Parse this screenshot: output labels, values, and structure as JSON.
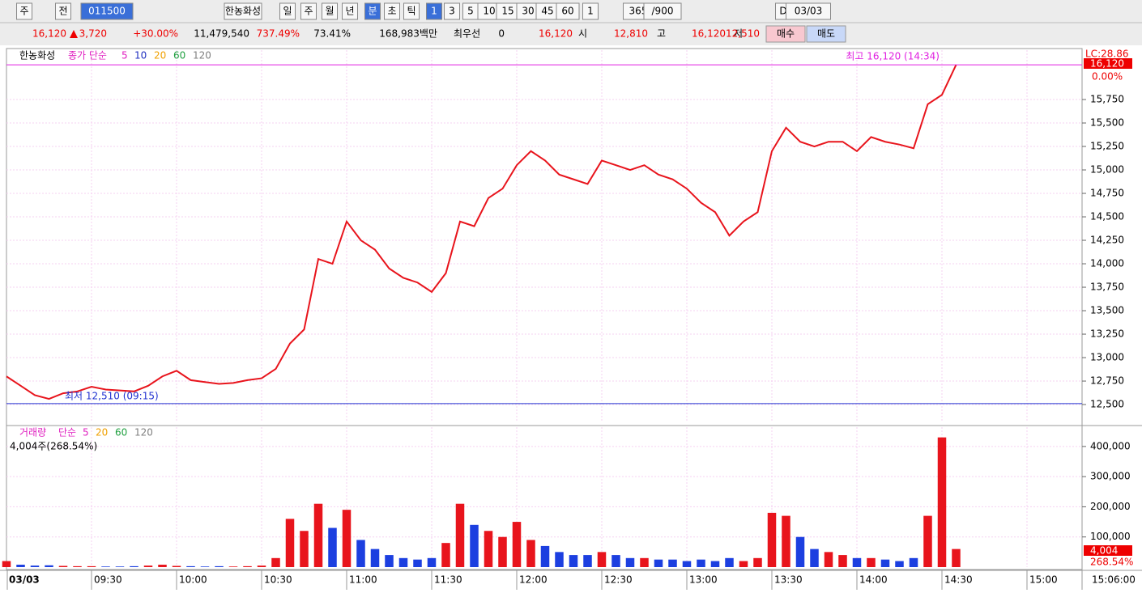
{
  "toolbar": {
    "items": [
      "주",
      "전",
      "011500",
      "한농화성",
      "일",
      "주",
      "월",
      "년",
      "분",
      "초",
      "틱",
      "1",
      "3",
      "5",
      "10",
      "15",
      "30",
      "45",
      "60",
      "1",
      "365",
      "/900",
      "D",
      "03/03"
    ]
  },
  "info_bar": {
    "price": "16,120",
    "change": "3,720",
    "rate": "+30.00%",
    "volume": "11,479,540",
    "volume_rate": "737.49%",
    "turnover": "73.41%",
    "amount": "168,983백만",
    "best_label": "최우선",
    "best_value": "0",
    "current": "16,120",
    "open_label": "시",
    "open": "12,810",
    "high_label": "고",
    "high": "16,120",
    "low_label": "저",
    "low": "12,510",
    "buy": "매수",
    "sell": "매도"
  },
  "chart_data": [
    {
      "type": "line",
      "title": "한농화성",
      "legend": {
        "label": "종가 단순",
        "periods": [
          "5",
          "10",
          "20",
          "60",
          "120"
        ],
        "period_colors": [
          "#e020c0",
          "#2030c0",
          "#f0a000",
          "#20a040",
          "#808080"
        ]
      },
      "color": "#e8141c",
      "categories": [
        "03/03",
        null,
        null,
        null,
        null,
        null,
        "09:30",
        null,
        null,
        null,
        null,
        null,
        "10:00",
        null,
        null,
        null,
        null,
        null,
        "10:30",
        null,
        null,
        null,
        null,
        null,
        "11:00",
        null,
        null,
        null,
        null,
        null,
        "11:30",
        null,
        null,
        null,
        null,
        null,
        "12:00",
        null,
        null,
        null,
        null,
        null,
        "12:30",
        null,
        null,
        null,
        null,
        null,
        "13:00",
        null,
        null,
        null,
        null,
        null,
        "13:30",
        null,
        null,
        null,
        null,
        null,
        "14:00",
        null,
        null,
        null,
        null,
        null,
        "14:30",
        null,
        null,
        null,
        null,
        null,
        "15:00"
      ],
      "values": [
        12800,
        12700,
        12600,
        12560,
        12620,
        12640,
        12690,
        12660,
        12650,
        12640,
        12700,
        12800,
        12860,
        12760,
        12740,
        12720,
        12730,
        12760,
        12780,
        12880,
        13150,
        13300,
        14050,
        14000,
        14450,
        14250,
        14150,
        13950,
        13850,
        13800,
        13700,
        13900,
        14450,
        14400,
        14700,
        14800,
        15050,
        15200,
        15100,
        14950,
        14900,
        14850,
        15100,
        15050,
        15000,
        15050,
        14950,
        14900,
        14800,
        14650,
        14550,
        14300,
        14450,
        14550,
        15200,
        15450,
        15300,
        15250,
        15300,
        15300,
        15200,
        15350,
        15300,
        15270,
        15230,
        15700,
        15800,
        16120,
        null,
        null,
        null,
        null,
        null
      ],
      "ylim": [
        12328,
        16276
      ],
      "yticks": [
        {
          "value": 12500,
          "label": "12,500"
        },
        {
          "value": 12750,
          "label": "12,750"
        },
        {
          "value": 13000,
          "label": "13,000"
        },
        {
          "value": 13250,
          "label": "13,250"
        },
        {
          "value": 13500,
          "label": "13,500"
        },
        {
          "value": 13750,
          "label": "13,750"
        },
        {
          "value": 14000,
          "label": "14,000"
        },
        {
          "value": 14250,
          "label": "14,250"
        },
        {
          "value": 14500,
          "label": "14,500"
        },
        {
          "value": 14750,
          "label": "14,750"
        },
        {
          "value": 15000,
          "label": "15,000"
        },
        {
          "value": 15250,
          "label": "15,250"
        },
        {
          "value": 15500,
          "label": "15,500"
        },
        {
          "value": 15750,
          "label": "15,750"
        }
      ],
      "grid": true,
      "high_line": {
        "value": 16120,
        "label": "최고 16,120 (14:34)",
        "color": "#e020e0"
      },
      "low_line": {
        "value": 12510,
        "label": "최저 12,510 (09:15)",
        "color": "#2030d0"
      },
      "right_labels": {
        "lc": "LC:28.86",
        "last": "16,120",
        "pct": "0.00%"
      },
      "time_now": "15:06:00"
    },
    {
      "type": "bar",
      "title": "거래량",
      "legend": {
        "label": "단순",
        "periods": [
          "5",
          "20",
          "60",
          "120"
        ],
        "period_colors": [
          "#e020c0",
          "#f0a000",
          "#20a040",
          "#808080"
        ]
      },
      "subtitle": "4,004주(268.54%)",
      "up_color": "#e8141c",
      "down_color": "#1c3fe0",
      "values": [
        20000,
        8000,
        5000,
        6000,
        4000,
        3000,
        3000,
        2000,
        2000,
        3000,
        5000,
        8000,
        4000,
        3000,
        2000,
        3000,
        2000,
        3000,
        5000,
        30000,
        160000,
        120000,
        210000,
        130000,
        190000,
        90000,
        60000,
        40000,
        30000,
        25000,
        30000,
        80000,
        210000,
        140000,
        120000,
        100000,
        150000,
        90000,
        70000,
        50000,
        40000,
        40000,
        50000,
        40000,
        30000,
        30000,
        25000,
        25000,
        20000,
        25000,
        20000,
        30000,
        20000,
        30000,
        180000,
        170000,
        100000,
        60000,
        50000,
        40000,
        30000,
        30000,
        25000,
        20000,
        30000,
        170000,
        430000,
        60000,
        null,
        null,
        null,
        null,
        null
      ],
      "ylim": [
        0,
        464000
      ],
      "yticks": [
        {
          "value": 100000,
          "label": "100,000"
        },
        {
          "value": 200000,
          "label": "200,000"
        },
        {
          "value": 300000,
          "label": "300,000"
        },
        {
          "value": 400000,
          "label": "400,000"
        }
      ],
      "right_labels": {
        "last": "4,004",
        "pct": "268.54%"
      }
    }
  ]
}
